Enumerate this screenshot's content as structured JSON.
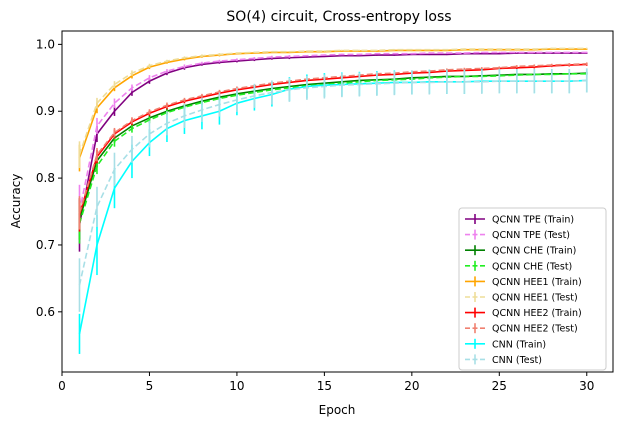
{
  "chart_data": {
    "type": "line",
    "title": "SO(4) circuit, Cross-entropy loss",
    "xlabel": "Epoch",
    "ylabel": "Accuracy",
    "xlim": [
      0,
      31.5
    ],
    "ylim": [
      0.51,
      1.02
    ],
    "xticks": [
      0,
      5,
      10,
      15,
      20,
      25,
      30
    ],
    "yticks": [
      0.6,
      0.7,
      0.8,
      0.9,
      1.0
    ],
    "ytick_labels": [
      "0.6",
      "0.7",
      "0.8",
      "0.9",
      "1.0"
    ],
    "legend_position": "lower-right",
    "x": [
      1,
      2,
      3,
      4,
      5,
      6,
      7,
      8,
      9,
      10,
      11,
      12,
      13,
      14,
      15,
      16,
      17,
      18,
      19,
      20,
      21,
      22,
      23,
      24,
      25,
      26,
      27,
      28,
      29,
      30
    ],
    "series": [
      {
        "name": "QCNN TPE (Train)",
        "color": "#800080",
        "dashed": false,
        "values": [
          0.73,
          0.866,
          0.9,
          0.928,
          0.945,
          0.957,
          0.965,
          0.97,
          0.973,
          0.975,
          0.977,
          0.979,
          0.98,
          0.981,
          0.982,
          0.983,
          0.983,
          0.984,
          0.984,
          0.985,
          0.985,
          0.985,
          0.986,
          0.986,
          0.986,
          0.987,
          0.987,
          0.987,
          0.987,
          0.987
        ],
        "errors": [
          0.04,
          0.012,
          0.007,
          0.005,
          0.004,
          0.003,
          0.003,
          0.002,
          0.002,
          0.002,
          0.002,
          0.002,
          0.002,
          0.001,
          0.001,
          0.001,
          0.001,
          0.001,
          0.001,
          0.001,
          0.001,
          0.001,
          0.001,
          0.001,
          0.001,
          0.001,
          0.001,
          0.001,
          0.001,
          0.001
        ]
      },
      {
        "name": "QCNN TPE (Test)",
        "color": "#ee82ee",
        "dashed": true,
        "values": [
          0.75,
          0.878,
          0.912,
          0.935,
          0.95,
          0.96,
          0.967,
          0.972,
          0.975,
          0.977,
          0.979,
          0.981,
          0.982,
          0.983,
          0.984,
          0.985,
          0.985,
          0.986,
          0.986,
          0.986,
          0.987,
          0.987,
          0.987,
          0.988,
          0.988,
          0.988,
          0.988,
          0.988,
          0.988,
          0.988
        ],
        "errors": [
          0.04,
          0.012,
          0.007,
          0.005,
          0.004,
          0.003,
          0.003,
          0.002,
          0.002,
          0.002,
          0.002,
          0.002,
          0.002,
          0.001,
          0.001,
          0.001,
          0.001,
          0.001,
          0.001,
          0.001,
          0.001,
          0.001,
          0.001,
          0.001,
          0.001,
          0.001,
          0.001,
          0.001,
          0.001,
          0.001
        ]
      },
      {
        "name": "QCNN CHE (Train)",
        "color": "#008000",
        "dashed": false,
        "values": [
          0.738,
          0.826,
          0.86,
          0.878,
          0.89,
          0.9,
          0.908,
          0.915,
          0.921,
          0.926,
          0.93,
          0.934,
          0.937,
          0.94,
          0.942,
          0.944,
          0.946,
          0.947,
          0.948,
          0.95,
          0.951,
          0.952,
          0.952,
          0.953,
          0.954,
          0.955,
          0.955,
          0.956,
          0.956,
          0.957
        ],
        "errors": [
          0.03,
          0.01,
          0.007,
          0.005,
          0.004,
          0.004,
          0.003,
          0.003,
          0.003,
          0.003,
          0.002,
          0.002,
          0.002,
          0.002,
          0.002,
          0.002,
          0.002,
          0.002,
          0.002,
          0.002,
          0.002,
          0.002,
          0.002,
          0.002,
          0.002,
          0.002,
          0.002,
          0.002,
          0.002,
          0.002
        ]
      },
      {
        "name": "QCNN CHE (Test)",
        "color": "#22ee22",
        "dashed": true,
        "values": [
          0.732,
          0.818,
          0.855,
          0.874,
          0.887,
          0.898,
          0.906,
          0.913,
          0.919,
          0.924,
          0.928,
          0.932,
          0.935,
          0.938,
          0.94,
          0.942,
          0.944,
          0.946,
          0.947,
          0.948,
          0.95,
          0.951,
          0.952,
          0.952,
          0.953,
          0.954,
          0.955,
          0.955,
          0.956,
          0.956
        ],
        "errors": [
          0.03,
          0.012,
          0.008,
          0.006,
          0.005,
          0.004,
          0.003,
          0.003,
          0.003,
          0.003,
          0.002,
          0.002,
          0.002,
          0.002,
          0.002,
          0.002,
          0.002,
          0.002,
          0.002,
          0.002,
          0.002,
          0.002,
          0.002,
          0.002,
          0.002,
          0.002,
          0.002,
          0.002,
          0.002,
          0.002
        ]
      },
      {
        "name": "QCNN HEE1 (Train)",
        "color": "#ffa500",
        "dashed": false,
        "values": [
          0.83,
          0.905,
          0.935,
          0.953,
          0.966,
          0.973,
          0.978,
          0.982,
          0.984,
          0.986,
          0.987,
          0.988,
          0.988,
          0.989,
          0.989,
          0.99,
          0.99,
          0.99,
          0.991,
          0.991,
          0.991,
          0.991,
          0.992,
          0.992,
          0.992,
          0.992,
          0.992,
          0.993,
          0.993,
          0.993
        ],
        "errors": [
          0.02,
          0.008,
          0.005,
          0.004,
          0.003,
          0.002,
          0.002,
          0.002,
          0.002,
          0.001,
          0.001,
          0.001,
          0.001,
          0.001,
          0.001,
          0.001,
          0.001,
          0.001,
          0.001,
          0.001,
          0.001,
          0.001,
          0.001,
          0.001,
          0.001,
          0.001,
          0.001,
          0.001,
          0.001,
          0.001
        ]
      },
      {
        "name": "QCNN HEE1 (Test)",
        "color": "#eedd99",
        "dashed": true,
        "values": [
          0.835,
          0.912,
          0.94,
          0.957,
          0.968,
          0.975,
          0.98,
          0.983,
          0.985,
          0.987,
          0.988,
          0.989,
          0.989,
          0.99,
          0.99,
          0.991,
          0.991,
          0.991,
          0.992,
          0.992,
          0.992,
          0.992,
          0.993,
          0.993,
          0.993,
          0.993,
          0.993,
          0.994,
          0.994,
          0.994
        ],
        "errors": [
          0.02,
          0.008,
          0.005,
          0.004,
          0.003,
          0.002,
          0.002,
          0.002,
          0.002,
          0.001,
          0.001,
          0.001,
          0.001,
          0.001,
          0.001,
          0.001,
          0.001,
          0.001,
          0.001,
          0.001,
          0.001,
          0.001,
          0.001,
          0.001,
          0.001,
          0.001,
          0.001,
          0.001,
          0.001,
          0.001
        ]
      },
      {
        "name": "QCNN HEE2 (Train)",
        "color": "#ff0000",
        "dashed": false,
        "values": [
          0.745,
          0.832,
          0.866,
          0.884,
          0.897,
          0.907,
          0.915,
          0.921,
          0.927,
          0.932,
          0.936,
          0.94,
          0.943,
          0.946,
          0.948,
          0.95,
          0.952,
          0.954,
          0.955,
          0.957,
          0.958,
          0.96,
          0.961,
          0.962,
          0.964,
          0.965,
          0.966,
          0.968,
          0.969,
          0.97
        ],
        "errors": [
          0.025,
          0.01,
          0.007,
          0.005,
          0.004,
          0.004,
          0.003,
          0.003,
          0.003,
          0.003,
          0.002,
          0.002,
          0.002,
          0.002,
          0.002,
          0.002,
          0.002,
          0.002,
          0.002,
          0.002,
          0.002,
          0.002,
          0.002,
          0.002,
          0.002,
          0.002,
          0.002,
          0.002,
          0.002,
          0.002
        ]
      },
      {
        "name": "QCNN HEE2 (Test)",
        "color": "#f08070",
        "dashed": true,
        "values": [
          0.748,
          0.835,
          0.868,
          0.886,
          0.899,
          0.909,
          0.917,
          0.923,
          0.929,
          0.934,
          0.938,
          0.942,
          0.945,
          0.948,
          0.95,
          0.952,
          0.954,
          0.956,
          0.957,
          0.959,
          0.96,
          0.962,
          0.963,
          0.964,
          0.965,
          0.967,
          0.968,
          0.969,
          0.97,
          0.971
        ],
        "errors": [
          0.025,
          0.01,
          0.007,
          0.005,
          0.004,
          0.004,
          0.003,
          0.003,
          0.003,
          0.003,
          0.002,
          0.002,
          0.002,
          0.002,
          0.002,
          0.002,
          0.002,
          0.002,
          0.002,
          0.002,
          0.002,
          0.002,
          0.002,
          0.002,
          0.002,
          0.002,
          0.002,
          0.002,
          0.002,
          0.002
        ]
      },
      {
        "name": "CNN (Train)",
        "color": "#00ffff",
        "dashed": false,
        "values": [
          0.567,
          0.7,
          0.785,
          0.825,
          0.853,
          0.874,
          0.886,
          0.893,
          0.9,
          0.912,
          0.919,
          0.925,
          0.933,
          0.937,
          0.939,
          0.94,
          0.941,
          0.942,
          0.943,
          0.943,
          0.944,
          0.944,
          0.944,
          0.945,
          0.945,
          0.945,
          0.945,
          0.945,
          0.945,
          0.946
        ],
        "errors": [
          0.03,
          0.045,
          0.03,
          0.025,
          0.02,
          0.02,
          0.02,
          0.02,
          0.02,
          0.018,
          0.018,
          0.018,
          0.018,
          0.018,
          0.018,
          0.018,
          0.018,
          0.018,
          0.018,
          0.018,
          0.018,
          0.018,
          0.018,
          0.018,
          0.018,
          0.018,
          0.018,
          0.018,
          0.018,
          0.018
        ]
      },
      {
        "name": "CNN (Test)",
        "color": "#a8dfe6",
        "dashed": true,
        "values": [
          0.64,
          0.757,
          0.813,
          0.843,
          0.866,
          0.882,
          0.893,
          0.902,
          0.91,
          0.917,
          0.923,
          0.928,
          0.932,
          0.935,
          0.937,
          0.939,
          0.94,
          0.941,
          0.942,
          0.943,
          0.943,
          0.944,
          0.944,
          0.944,
          0.945,
          0.945,
          0.945,
          0.945,
          0.945,
          0.946
        ],
        "errors": [
          0.04,
          0.03,
          0.025,
          0.02,
          0.02,
          0.018,
          0.018,
          0.018,
          0.018,
          0.018,
          0.018,
          0.018,
          0.018,
          0.018,
          0.018,
          0.018,
          0.018,
          0.018,
          0.018,
          0.018,
          0.018,
          0.018,
          0.018,
          0.018,
          0.018,
          0.018,
          0.018,
          0.018,
          0.018,
          0.018
        ]
      }
    ]
  }
}
